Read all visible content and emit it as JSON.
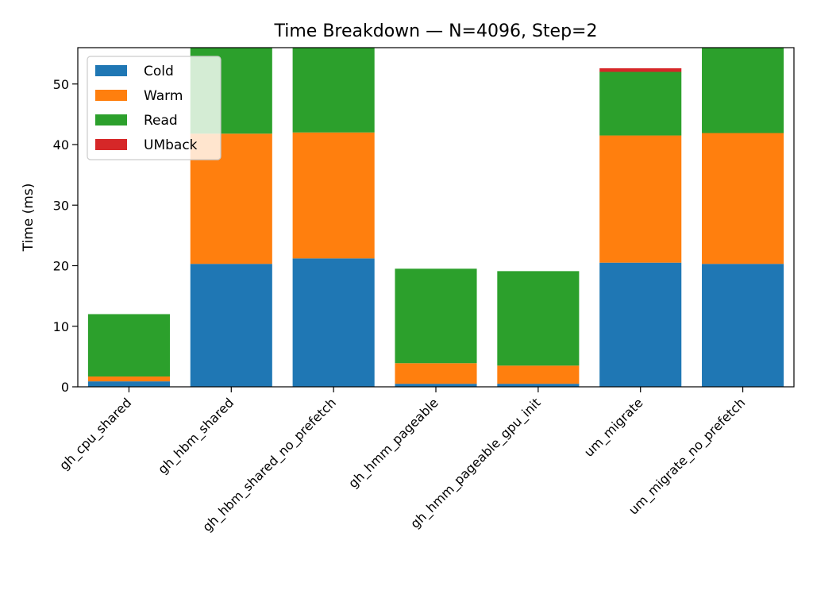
{
  "chart_data": {
    "type": "bar",
    "stacked": true,
    "title": "Time Breakdown — N=4096, Step=2",
    "xlabel": "",
    "ylabel": "Time (ms)",
    "ylim": [
      0,
      56
    ],
    "yticks": [
      0,
      10,
      20,
      30,
      40,
      50
    ],
    "grid": false,
    "legend_position": "top-left",
    "categories": [
      "gh_cpu_shared",
      "gh_hbm_shared",
      "gh_hbm_shared_no_prefetch",
      "gh_hmm_pageable",
      "gh_hmm_pageable_gpu_init",
      "um_migrate",
      "um_migrate_no_prefetch"
    ],
    "series": [
      {
        "name": "Cold",
        "color": "#1f77b4",
        "values": [
          0.9,
          20.3,
          21.2,
          0.5,
          0.5,
          20.5,
          20.3
        ]
      },
      {
        "name": "Warm",
        "color": "#ff7f0e",
        "values": [
          0.8,
          21.5,
          20.8,
          3.4,
          3.0,
          21.0,
          21.6
        ]
      },
      {
        "name": "Read",
        "color": "#2ca02c",
        "values": [
          10.3,
          15.5,
          15.5,
          15.6,
          15.6,
          10.5,
          15.6
        ]
      },
      {
        "name": "UMback",
        "color": "#d62728",
        "values": [
          0,
          0,
          0,
          0,
          0,
          0.6,
          0
        ]
      }
    ]
  }
}
